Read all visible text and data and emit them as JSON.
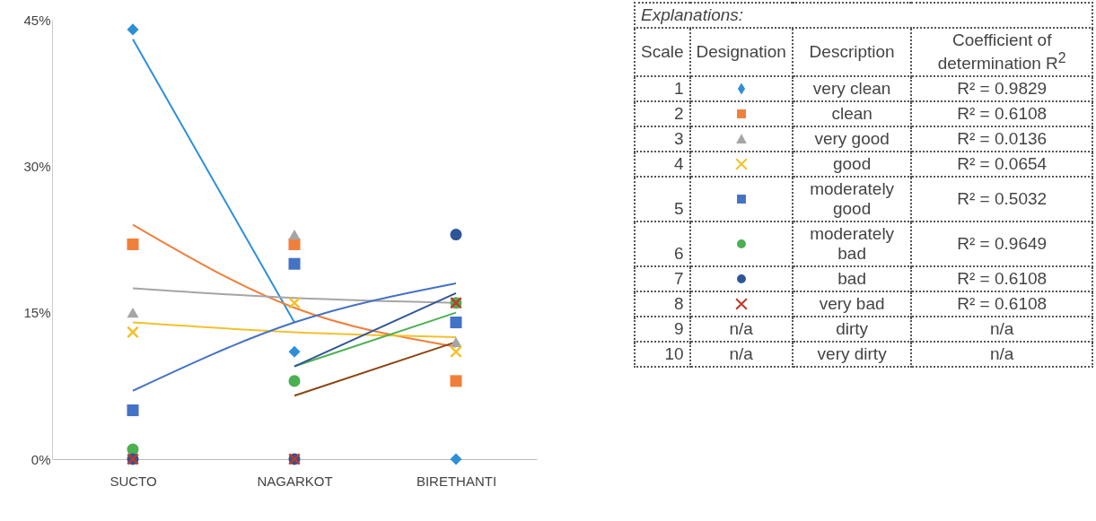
{
  "chart_data": [
    {
      "type": "scatter",
      "categories": [
        "SUCTO",
        "NAGARKOT",
        "BIRETHANTI"
      ],
      "ylim": [
        0,
        45
      ],
      "yticks": [
        {
          "value": 0,
          "label": "0%"
        },
        {
          "value": 15,
          "label": "15%"
        },
        {
          "value": 30,
          "label": "30%"
        },
        {
          "value": 45,
          "label": "45%"
        }
      ],
      "grid": false,
      "series": [
        {
          "type": "scatter",
          "marker": "diamond",
          "color": "#2e8fd8",
          "values": [
            44,
            11,
            0
          ]
        },
        {
          "type": "scatter",
          "marker": "square",
          "color": "#f07f3a",
          "values": [
            22,
            22,
            8
          ]
        },
        {
          "type": "scatter",
          "marker": "triangle",
          "color": "#a5a5a5",
          "values": [
            15,
            23,
            12
          ]
        },
        {
          "type": "scatter",
          "marker": "cross",
          "color": "#f2c12e",
          "values": [
            13,
            16,
            11
          ]
        },
        {
          "type": "scatter",
          "marker": "square",
          "color": "#4472c4",
          "values": [
            5,
            20,
            14
          ]
        },
        {
          "type": "scatter",
          "marker": "circle",
          "color": "#4caf50",
          "values": [
            1,
            8,
            16
          ]
        },
        {
          "type": "scatter",
          "marker": "circle",
          "color": "#2f5597",
          "values": [
            0,
            0,
            23
          ]
        },
        {
          "type": "scatter",
          "marker": "cross",
          "color": "#c0392b",
          "values": [
            0,
            0,
            16
          ]
        },
        {
          "type": "line",
          "color": "#2e8fd8",
          "values": [
            43,
            14,
            null
          ]
        },
        {
          "type": "line",
          "color": "#f07f3a",
          "values": [
            24,
            15.5,
            11.5
          ]
        },
        {
          "type": "line",
          "color": "#a5a5a5",
          "values": [
            17.5,
            16.5,
            16
          ]
        },
        {
          "type": "line",
          "color": "#f2c12e",
          "values": [
            14,
            13,
            12.5
          ]
        },
        {
          "type": "line",
          "color": "#4472c4",
          "values": [
            7,
            14,
            18
          ]
        },
        {
          "type": "line",
          "color": "#4caf50",
          "values": [
            null,
            9.5,
            15
          ]
        },
        {
          "type": "line",
          "color": "#2f5597",
          "values": [
            null,
            9.5,
            17
          ]
        },
        {
          "type": "line",
          "color": "#8b4513",
          "values": [
            null,
            6.5,
            12
          ]
        }
      ]
    },
    {
      "type": "other",
      "title": "Explanations:",
      "annotations": [
        "Scale",
        "Designation",
        "Description",
        "Coefficient of determination R$^{2}$",
        "1",
        "very clean",
        "R² = 0.9829",
        "2",
        "clean",
        "R² = 0.6108",
        "3",
        "very good",
        "R² = 0.0136",
        "4",
        "good",
        "R² = 0.0654",
        "5",
        "moderately good",
        "R² = 0.5032",
        "6",
        "moderately bad",
        "R² = 0.9649",
        "7",
        "bad",
        "R² = 0.6108",
        "8",
        "very bad",
        "R² = 0.6108",
        "9",
        "n/a",
        "dirty",
        "n/a",
        "10",
        "n/a",
        "very dirty",
        "n/a"
      ]
    }
  ]
}
